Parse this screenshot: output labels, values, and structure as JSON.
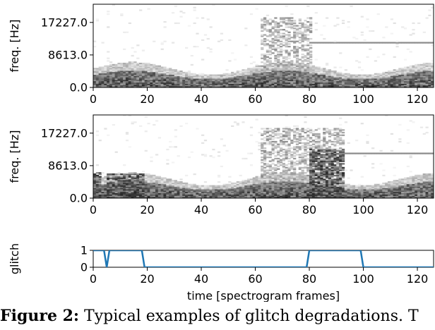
{
  "chart_data": [
    {
      "type": "heatmap",
      "title": "",
      "xlabel": "",
      "ylabel": "freq. [Hz]",
      "xlim": [
        0,
        126
      ],
      "ylim": [
        0.0,
        22050.0
      ],
      "xticks": [
        0,
        20,
        40,
        60,
        80,
        100,
        120
      ],
      "xtick_labels": [
        "0",
        "20",
        "40",
        "60",
        "80",
        "100",
        "120"
      ],
      "yticks": [
        0.0,
        8613.0,
        17227.0
      ],
      "ytick_labels": [
        "0.0",
        "8613.0",
        "17227.0"
      ],
      "colormap": "gray_r",
      "features": {
        "low_band_top_hz": 4500,
        "broadband_burst_frames": [
          62,
          80
        ],
        "tone_hz": 12000,
        "tone_frames": [
          80,
          126
        ]
      }
    },
    {
      "type": "heatmap",
      "title": "",
      "xlabel": "",
      "ylabel": "freq. [Hz]",
      "xlim": [
        0,
        126
      ],
      "ylim": [
        0.0,
        22050.0
      ],
      "xticks": [
        0,
        20,
        40,
        60,
        80,
        100,
        120
      ],
      "xtick_labels": [
        "0",
        "20",
        "40",
        "60",
        "80",
        "100",
        "120"
      ],
      "yticks": [
        0.0,
        8613.0,
        17227.0
      ],
      "ytick_labels": [
        "0.0",
        "8613.0",
        "17227.0"
      ],
      "colormap": "gray_r",
      "features": {
        "low_band_top_hz": 4500,
        "glitch_blocks": [
          [
            0,
            2,
            7000
          ],
          [
            5,
            18,
            6500
          ],
          [
            80,
            92,
            13000
          ]
        ],
        "broadband_burst_frames": [
          62,
          92
        ],
        "tone_hz": 12000,
        "tone_frames": [
          92,
          126
        ]
      }
    },
    {
      "type": "line",
      "title": "",
      "xlabel": "time [spectrogram frames]",
      "ylabel": "glitch",
      "xlim": [
        0,
        126
      ],
      "ylim": [
        0,
        1
      ],
      "xticks": [
        0,
        20,
        40,
        60,
        80,
        100,
        120
      ],
      "xtick_labels": [
        "0",
        "20",
        "40",
        "60",
        "80",
        "100",
        "120"
      ],
      "yticks": [
        0,
        1
      ],
      "ytick_labels": [
        "0",
        "1"
      ],
      "grid": false,
      "series": [
        {
          "color": "#1f77b4",
          "x": [
            0,
            4,
            5,
            6,
            18,
            19,
            79,
            80,
            99,
            100,
            126
          ],
          "y": [
            1,
            1,
            0,
            1,
            1,
            0,
            0,
            1,
            1,
            0,
            0
          ]
        }
      ]
    }
  ],
  "caption": {
    "label": "Figure 2:",
    "text": " Typical examples of glitch degradations. T"
  }
}
